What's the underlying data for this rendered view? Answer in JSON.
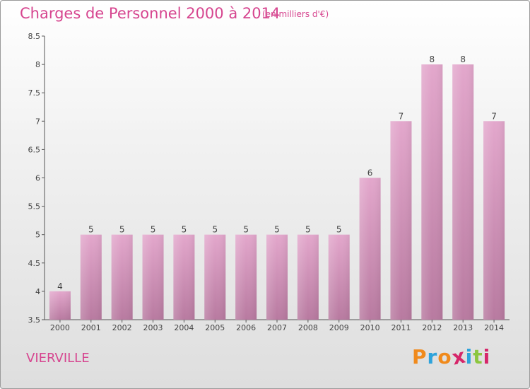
{
  "header": {
    "title": "Charges de Personnel 2000 à 2014",
    "subtitle": "(en milliers d'€)"
  },
  "footer": {
    "commune": "VIERVILLE",
    "logo_text": "Proxiti",
    "logo_colors": [
      "#f08a1c",
      "#2ea3db",
      "#f08a1c",
      "#d6266a",
      "#2ea3db",
      "#8cc63f",
      "#d6266a"
    ]
  },
  "colors": {
    "accent": "#d6458f",
    "bar_top": "#e3a7cc",
    "bar_bottom": "#b87aa0"
  },
  "chart_data": {
    "type": "bar",
    "title": "Charges de Personnel 2000 à 2014",
    "subtitle": "(en milliers d'€)",
    "xlabel": "",
    "ylabel": "",
    "categories": [
      "2000",
      "2001",
      "2002",
      "2003",
      "2004",
      "2005",
      "2006",
      "2007",
      "2008",
      "2009",
      "2010",
      "2011",
      "2012",
      "2013",
      "2014"
    ],
    "values": [
      4,
      5,
      5,
      5,
      5,
      5,
      5,
      5,
      5,
      5,
      6,
      7,
      8,
      8,
      7
    ],
    "data_labels": [
      "4",
      "5",
      "5",
      "5",
      "5",
      "5",
      "5",
      "5",
      "5",
      "5",
      "6",
      "7",
      "8",
      "8",
      "7"
    ],
    "ylim": [
      3.5,
      8.5
    ],
    "yticks": [
      "3.5",
      "4",
      "4.5",
      "5",
      "5.5",
      "6",
      "6.5",
      "7",
      "7.5",
      "8",
      "8.5"
    ],
    "grid": false,
    "legend": "none"
  }
}
